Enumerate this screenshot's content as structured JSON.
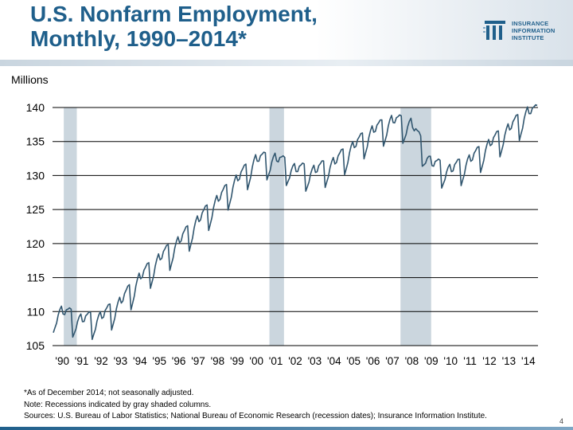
{
  "header": {
    "title_line1": "U.S. Nonfarm Employment,",
    "title_line2": "Monthly, 1990–2014*",
    "logo_line1": "INSURANCE",
    "logo_line2": "INFORMATION",
    "logo_line3": "INSTITUTE"
  },
  "colors": {
    "line": "#31566f",
    "recession": "#cbd6de",
    "title": "#1f5f8b",
    "grid": "#000000"
  },
  "chart_data": {
    "type": "line",
    "title": "U.S. Nonfarm Employment, Monthly, 1990–2014*",
    "ylabel": "Millions",
    "xlabel": "",
    "ylim": [
      105,
      140
    ],
    "yticks": [
      140,
      135,
      130,
      125,
      120,
      115,
      110,
      105
    ],
    "grid": true,
    "x_tick_labels": [
      "'90",
      "'91",
      "'92",
      "'93",
      "'94",
      "'95",
      "'96",
      "'97",
      "'98",
      "'99",
      "'00",
      "'01",
      "'02",
      "'03",
      "'04",
      "'05",
      "'06",
      "'07",
      "'08",
      "'09",
      "'10",
      "'11",
      "'12",
      "'13",
      "'14"
    ],
    "recessions": [
      {
        "start": 1990.58,
        "end": 1991.25
      },
      {
        "start": 2001.17,
        "end": 2001.92
      },
      {
        "start": 2007.92,
        "end": 2009.5
      }
    ],
    "annual_trend": {
      "years": [
        1990,
        1991,
        1992,
        1993,
        1994,
        1995,
        1996,
        1997,
        1998,
        1999,
        2000,
        2001,
        2002,
        2003,
        2004,
        2005,
        2006,
        2007,
        2008,
        2009,
        2010,
        2011,
        2012,
        2013,
        2014
      ],
      "values": [
        109.5,
        108.3,
        108.7,
        110.9,
        114.5,
        117.3,
        119.8,
        122.9,
        125.9,
        128.9,
        131.9,
        132.0,
        130.4,
        130.2,
        131.4,
        133.8,
        136.1,
        137.6,
        137.1,
        131.3,
        130.3,
        131.8,
        134.1,
        136.4,
        138.9
      ]
    },
    "seasonal_pattern": [
      -2.6,
      -1.9,
      -1.2,
      0.0,
      0.8,
      1.3,
      0.2,
      0.2,
      1.0,
      1.2,
      1.5,
      1.4
    ],
    "series": [
      {
        "name": "Nonfarm employment, not seasonally adjusted (millions)",
        "note": "monthly values = annual_trend + seasonal_pattern"
      }
    ]
  },
  "units_label": "Millions",
  "notes": {
    "line1": "*As of December 2014; not seasonally adjusted.",
    "line2": "Note: Recessions indicated by gray shaded columns.",
    "line3": "Sources: U.S. Bureau of Labor Statistics;  National Bureau of Economic Research (recession dates); Insurance Information Institute."
  },
  "page_number": "4"
}
